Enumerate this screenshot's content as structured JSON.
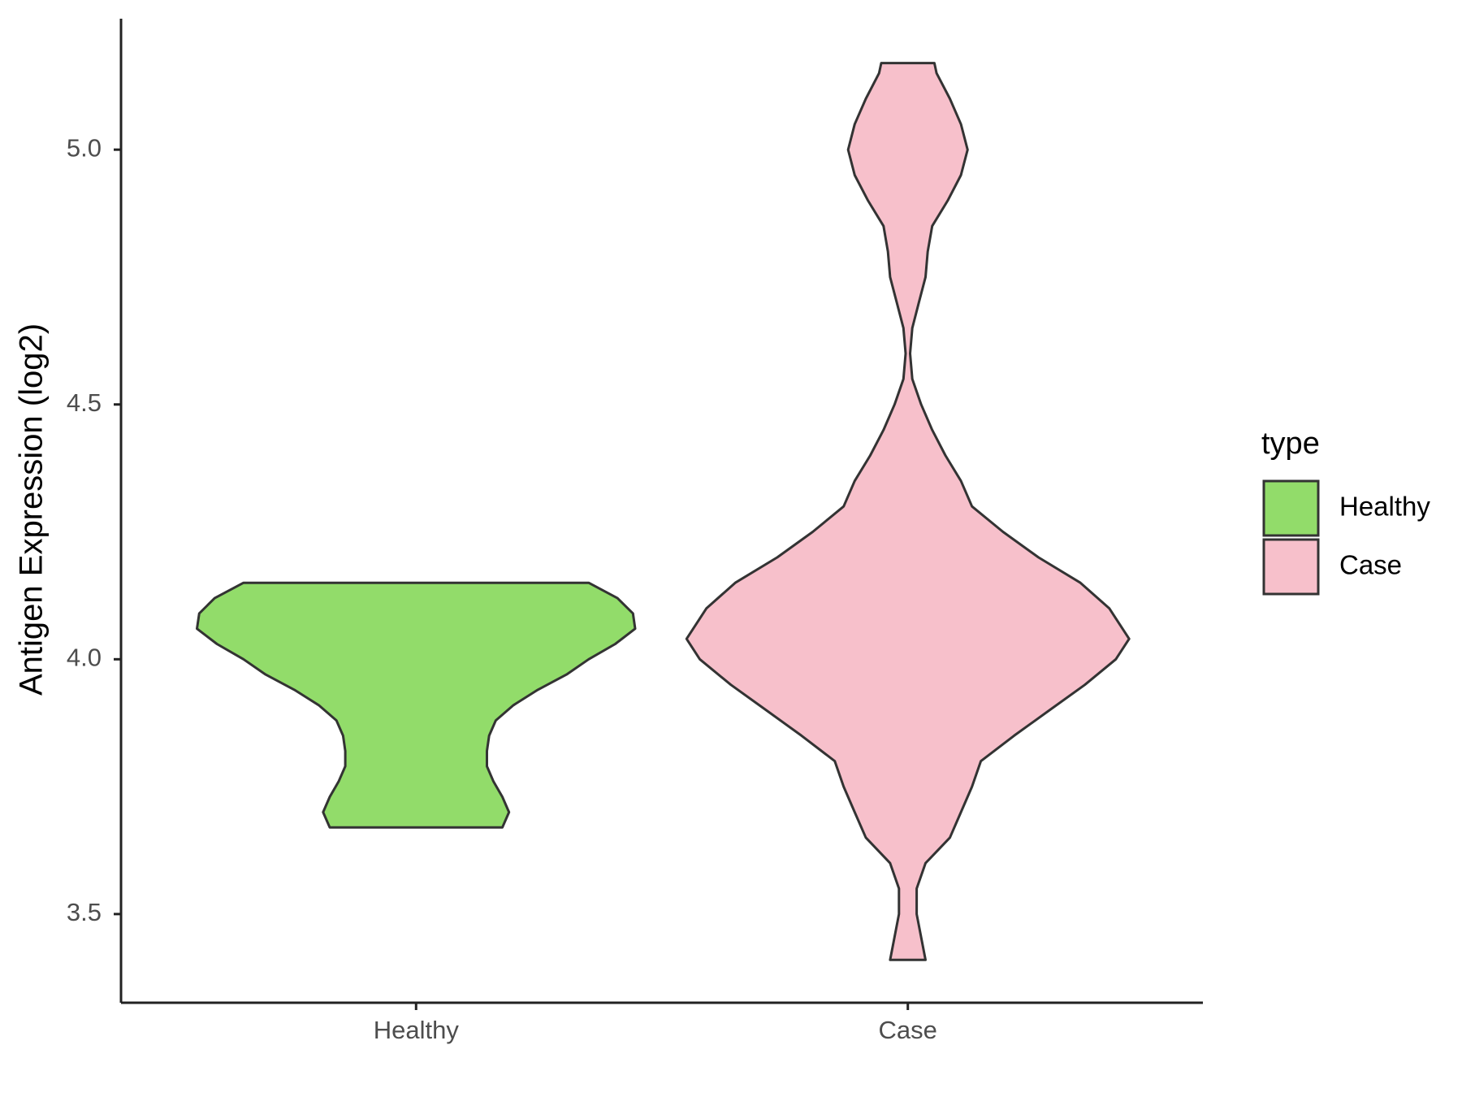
{
  "chart_data": {
    "type": "violin",
    "y_label": "Antigen Expression (log2)",
    "categories": [
      "Healthy",
      "Case"
    ],
    "legend_title": "type",
    "legend_position": "right",
    "ylim": [
      3.326,
      5.257
    ],
    "yticks": [
      3.5,
      {
        "value": 4,
        "label": "4.0"
      },
      4.5,
      {
        "value": 5,
        "label": "5.0"
      }
    ],
    "series": [
      {
        "name": "Healthy",
        "color": "#92dc6a",
        "y": [
          3.67,
          3.7,
          3.73,
          3.76,
          3.79,
          3.82,
          3.85,
          3.88,
          3.91,
          3.94,
          3.97,
          4.0,
          4.03,
          4.06,
          4.09,
          4.12,
          4.15
        ],
        "density": [
          0.39,
          0.42,
          0.39,
          0.35,
          0.32,
          0.32,
          0.33,
          0.36,
          0.44,
          0.55,
          0.68,
          0.78,
          0.9,
          0.99,
          0.98,
          0.91,
          0.78
        ]
      },
      {
        "name": "Case",
        "color": "#f7c0cb",
        "y": [
          3.41,
          3.5,
          3.55,
          3.6,
          3.65,
          3.7,
          3.75,
          3.8,
          3.85,
          3.9,
          3.95,
          4.0,
          4.04,
          4.1,
          4.15,
          4.2,
          4.25,
          4.3,
          4.35,
          4.4,
          4.45,
          4.5,
          4.55,
          4.6,
          4.65,
          4.7,
          4.75,
          4.8,
          4.85,
          4.9,
          4.95,
          5.0,
          5.05,
          5.1,
          5.15,
          5.17
        ],
        "density": [
          0.08,
          0.04,
          0.04,
          0.08,
          0.19,
          0.24,
          0.29,
          0.33,
          0.48,
          0.64,
          0.8,
          0.94,
          1.0,
          0.91,
          0.78,
          0.59,
          0.43,
          0.29,
          0.24,
          0.17,
          0.11,
          0.06,
          0.02,
          0.01,
          0.02,
          0.05,
          0.08,
          0.09,
          0.11,
          0.18,
          0.24,
          0.27,
          0.24,
          0.19,
          0.13,
          0.12
        ]
      }
    ]
  }
}
